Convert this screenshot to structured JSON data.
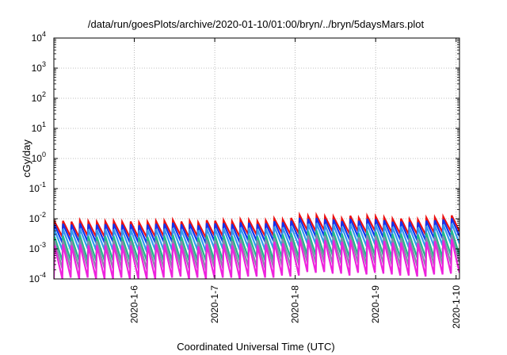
{
  "chart_data": {
    "type": "line",
    "title": "/data/run/goesPlots/archive/2020-01-10/01:00/bryn/../bryn/5daysMars.plot",
    "xlabel": "Coordinated Universal Time (UTC)",
    "ylabel": "cGy/day",
    "yscale": "log",
    "ylim": [
      0.0001,
      10000
    ],
    "y_ticks": [
      {
        "base": "10",
        "exp": "-4"
      },
      {
        "base": "10",
        "exp": "-3"
      },
      {
        "base": "10",
        "exp": "-2"
      },
      {
        "base": "10",
        "exp": "-1"
      },
      {
        "base": "10",
        "exp": "0"
      },
      {
        "base": "10",
        "exp": "1"
      },
      {
        "base": "10",
        "exp": "2"
      },
      {
        "base": "10",
        "exp": "3"
      },
      {
        "base": "10",
        "exp": "4"
      }
    ],
    "xlim": [
      "2020-01-05 00:00",
      "2020-01-10 01:00"
    ],
    "x_ticks": [
      "2020-1-6",
      "2020-1-7",
      "2020-1-8",
      "2020-1-9",
      "2020-1-10"
    ],
    "grid": true,
    "legend": "none",
    "colors": {
      "red": "#ee1111",
      "blue": "#1133ee",
      "lightblue": "#3399ee",
      "green": "#22bb88",
      "gray": "#8888aa",
      "magenta": "#ee22dd"
    },
    "series": [
      {
        "color_key": "red",
        "peaks": [
          0.008,
          0.0085,
          0.008,
          0.0088,
          0.0082,
          0.0079,
          0.0082,
          0.0084,
          0.0079,
          0.0081,
          0.0075,
          0.0079,
          0.0084,
          0.0085,
          0.0091,
          0.0081,
          0.0084,
          0.0075,
          0.0089,
          0.0086,
          0.0089,
          0.0082,
          0.0094,
          0.0091,
          0.0083,
          0.0087,
          0.0102,
          0.0094,
          0.0106,
          0.0133,
          0.0124,
          0.0131,
          0.0119,
          0.0118,
          0.0102,
          0.0125,
          0.0106,
          0.0124,
          0.0119,
          0.0111,
          0.0099,
          0.0101,
          0.0096,
          0.0094,
          0.0108,
          0.0111,
          0.0118,
          0.0129
        ],
        "troughs": [
          0.0025,
          0.0025,
          0.0024,
          0.0027,
          0.0025,
          0.0025,
          0.0026,
          0.0026,
          0.0024,
          0.0024,
          0.0024,
          0.0025,
          0.0026,
          0.0026,
          0.0028,
          0.0024,
          0.0026,
          0.0023,
          0.0027,
          0.0026,
          0.0027,
          0.0025,
          0.003,
          0.0029,
          0.0026,
          0.0027,
          0.0033,
          0.003,
          0.0032,
          0.0041,
          0.0038,
          0.0041,
          0.0037,
          0.0037,
          0.0031,
          0.0038,
          0.0034,
          0.0039,
          0.0036,
          0.0034,
          0.0031,
          0.003,
          0.003,
          0.0029,
          0.0034,
          0.0035,
          0.0037,
          0.0038
        ]
      },
      {
        "color_key": "blue",
        "peaks": [
          0.0064,
          0.0068,
          0.0064,
          0.007,
          0.0066,
          0.0063,
          0.0066,
          0.0067,
          0.0063,
          0.0065,
          0.006,
          0.0063,
          0.0067,
          0.0068,
          0.0073,
          0.0065,
          0.0067,
          0.006,
          0.0071,
          0.0069,
          0.0071,
          0.0066,
          0.0075,
          0.0073,
          0.0066,
          0.007,
          0.0082,
          0.0075,
          0.0085,
          0.0106,
          0.0099,
          0.0105,
          0.0095,
          0.0094,
          0.0082,
          0.01,
          0.0085,
          0.0099,
          0.0095,
          0.0089,
          0.0079,
          0.0081,
          0.0077,
          0.0075,
          0.0086,
          0.0089,
          0.0094,
          0.0103
        ],
        "troughs": [
          0.0016,
          0.0017,
          0.0016,
          0.0017,
          0.0016,
          0.0016,
          0.0017,
          0.0017,
          0.0016,
          0.0016,
          0.0015,
          0.0016,
          0.0017,
          0.0017,
          0.0018,
          0.0016,
          0.0017,
          0.0015,
          0.0018,
          0.0017,
          0.0017,
          0.0016,
          0.0019,
          0.0018,
          0.0017,
          0.0018,
          0.0021,
          0.0019,
          0.0021,
          0.0026,
          0.0025,
          0.0026,
          0.0024,
          0.0024,
          0.002,
          0.0025,
          0.0022,
          0.0025,
          0.0023,
          0.0022,
          0.002,
          0.002,
          0.0019,
          0.0019,
          0.0022,
          0.0022,
          0.0024,
          0.0026
        ]
      },
      {
        "color_key": "lightblue",
        "peaks": [
          0.0043,
          0.0046,
          0.0043,
          0.0047,
          0.0044,
          0.0043,
          0.0044,
          0.0045,
          0.0043,
          0.0044,
          0.0041,
          0.0043,
          0.0045,
          0.0046,
          0.0049,
          0.0044,
          0.0045,
          0.0041,
          0.0048,
          0.0046,
          0.0048,
          0.0044,
          0.0051,
          0.0049,
          0.0045,
          0.0047,
          0.0055,
          0.0051,
          0.0057,
          0.0072,
          0.0067,
          0.0071,
          0.0064,
          0.0064,
          0.0055,
          0.0068,
          0.0057,
          0.0067,
          0.0064,
          0.006,
          0.0053,
          0.0055,
          0.0052,
          0.0051,
          0.0058,
          0.006,
          0.0064,
          0.007
        ],
        "troughs": [
          0.0009,
          0.0009,
          0.0009,
          0.001,
          0.0009,
          0.0009,
          0.0009,
          0.0009,
          0.0009,
          0.0009,
          0.0008,
          0.0009,
          0.0009,
          0.0009,
          0.001,
          0.0009,
          0.0009,
          0.0008,
          0.001,
          0.001,
          0.001,
          0.0009,
          0.0011,
          0.001,
          0.0009,
          0.001,
          0.0012,
          0.0011,
          0.0012,
          0.0015,
          0.0014,
          0.0015,
          0.0013,
          0.0013,
          0.0011,
          0.0014,
          0.0012,
          0.0014,
          0.0013,
          0.0012,
          0.0011,
          0.0011,
          0.0011,
          0.0011,
          0.0012,
          0.0013,
          0.0014,
          0.0015
        ]
      },
      {
        "color_key": "green",
        "peaks": [
          0.0025,
          0.0027,
          0.0025,
          0.0028,
          0.0026,
          0.0025,
          0.0026,
          0.0026,
          0.0025,
          0.0026,
          0.0024,
          0.0025,
          0.0026,
          0.0027,
          0.0029,
          0.0025,
          0.0026,
          0.0024,
          0.0028,
          0.0027,
          0.0028,
          0.0026,
          0.003,
          0.0029,
          0.0026,
          0.0027,
          0.0032,
          0.003,
          0.0033,
          0.0042,
          0.0039,
          0.0041,
          0.0037,
          0.0037,
          0.0032,
          0.0039,
          0.0033,
          0.0039,
          0.0037,
          0.0035,
          0.0031,
          0.0032,
          0.003,
          0.003,
          0.0034,
          0.0035,
          0.0037,
          0.0041
        ],
        "troughs": [
          0.0004,
          0.0004,
          0.0004,
          0.0004,
          0.0004,
          0.0004,
          0.0004,
          0.0004,
          0.0004,
          0.0004,
          0.0004,
          0.0004,
          0.0004,
          0.0004,
          0.0004,
          0.0004,
          0.0004,
          0.0004,
          0.0004,
          0.0004,
          0.0004,
          0.0004,
          0.0005,
          0.0005,
          0.0004,
          0.0004,
          0.0005,
          0.0005,
          0.0005,
          0.0006,
          0.0006,
          0.0006,
          0.0006,
          0.0006,
          0.0005,
          0.0006,
          0.0005,
          0.0006,
          0.0006,
          0.0005,
          0.0005,
          0.0005,
          0.0005,
          0.0005,
          0.0005,
          0.0005,
          0.0006,
          0.0006
        ]
      },
      {
        "color_key": "gray",
        "peaks": [
          0.0018,
          0.0019,
          0.0018,
          0.002,
          0.0018,
          0.0018,
          0.0018,
          0.0019,
          0.0018,
          0.0018,
          0.0017,
          0.0018,
          0.0019,
          0.0019,
          0.002,
          0.0018,
          0.0019,
          0.0017,
          0.002,
          0.0019,
          0.002,
          0.0018,
          0.0021,
          0.002,
          0.0019,
          0.002,
          0.0023,
          0.0021,
          0.0024,
          0.003,
          0.0028,
          0.0029,
          0.0027,
          0.0026,
          0.0023,
          0.0028,
          0.0024,
          0.0028,
          0.0027,
          0.0025,
          0.0022,
          0.0023,
          0.0022,
          0.0021,
          0.0024,
          0.0025,
          0.0026,
          0.0029
        ],
        "troughs": [
          0.00022,
          0.00023,
          0.00022,
          0.00024,
          0.00022,
          0.00022,
          0.00022,
          0.00023,
          0.00022,
          0.00022,
          0.00021,
          0.00022,
          0.00023,
          0.00023,
          0.00025,
          0.00022,
          0.00023,
          0.0002,
          0.00024,
          0.00023,
          0.00024,
          0.00022,
          0.00026,
          0.00025,
          0.00022,
          0.00024,
          0.00028,
          0.00026,
          0.00029,
          0.00036,
          0.00034,
          0.00036,
          0.00032,
          0.00032,
          0.00028,
          0.00034,
          0.00029,
          0.00034,
          0.00032,
          0.0003,
          0.00027,
          0.00027,
          0.00026,
          0.00026,
          0.00029,
          0.0003,
          0.00032,
          0.00035
        ]
      },
      {
        "color_key": "magenta",
        "peaks": [
          0.0013,
          0.0014,
          0.0013,
          0.0014,
          0.0013,
          0.0013,
          0.0013,
          0.0014,
          0.0013,
          0.0013,
          0.0012,
          0.0013,
          0.0014,
          0.0014,
          0.0015,
          0.0013,
          0.0014,
          0.0012,
          0.0014,
          0.0014,
          0.0014,
          0.0013,
          0.0015,
          0.0015,
          0.0013,
          0.0014,
          0.0017,
          0.0015,
          0.0017,
          0.0022,
          0.002,
          0.0021,
          0.0019,
          0.0019,
          0.0017,
          0.002,
          0.0017,
          0.002,
          0.0019,
          0.0018,
          0.0016,
          0.0016,
          0.0016,
          0.0015,
          0.0017,
          0.0018,
          0.0019,
          0.0021
        ],
        "troughs": [
          0.0001,
          0.00011,
          0.0001,
          0.00011,
          0.0001,
          0.0001,
          0.0001,
          0.00011,
          0.0001,
          0.0001,
          0.0001,
          0.0001,
          0.00011,
          0.00011,
          0.00012,
          0.0001,
          0.00011,
          0.0001,
          0.00011,
          0.00011,
          0.00011,
          0.0001,
          0.00012,
          0.00012,
          0.00011,
          0.00011,
          0.00013,
          0.00012,
          0.00013,
          0.00017,
          0.00016,
          0.00017,
          0.00015,
          0.00015,
          0.00013,
          0.00016,
          0.00014,
          0.00016,
          0.00015,
          0.00014,
          0.00013,
          0.00013,
          0.00012,
          0.00012,
          0.00014,
          0.00014,
          0.00015,
          0.00016
        ]
      }
    ]
  }
}
